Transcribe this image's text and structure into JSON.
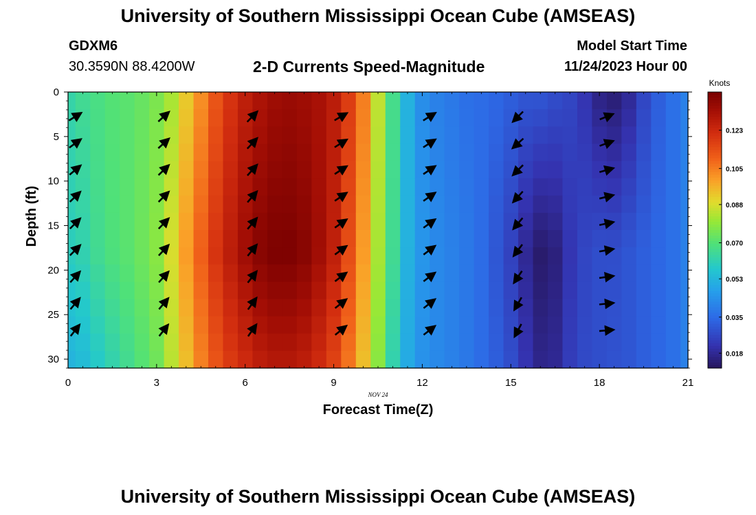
{
  "header": {
    "title": "University of Southern Mississippi Ocean Cube (AMSEAS)",
    "station": "GDXM6",
    "coordinates": "30.3590N  88.4200W",
    "subtitle": "2-D Currents Speed-Magnitude",
    "model_start_label": "Model Start Time",
    "model_start_value": "11/24/2023 Hour 00"
  },
  "footer": {
    "title": "University of Southern Mississippi Ocean Cube (AMSEAS)"
  },
  "chart_data": {
    "type": "heatmap",
    "title": "2-D Currents Speed-Magnitude",
    "xlabel": "Forecast Time(Z)",
    "ylabel": "Depth (ft)",
    "x_date_label": "NOV 24",
    "xlim": [
      0,
      21
    ],
    "ylim": [
      31,
      0
    ],
    "x_ticks": [
      0,
      3,
      6,
      9,
      12,
      15,
      18,
      21
    ],
    "y_ticks": [
      0,
      5,
      10,
      15,
      20,
      25,
      30
    ],
    "colorbar": {
      "label": "Knots",
      "ticks": [
        "0.123",
        "0.105",
        "0.088",
        "0.070",
        "0.053",
        "0.035",
        "0.018"
      ],
      "range": [
        0.011,
        0.141
      ]
    },
    "time_hours": [
      0,
      0.5,
      1,
      1.5,
      2,
      2.5,
      3,
      3.5,
      4,
      4.5,
      5,
      5.5,
      6,
      6.5,
      7,
      7.5,
      8,
      8.5,
      9,
      9.5,
      10,
      10.5,
      11,
      11.5,
      12,
      12.5,
      13,
      13.5,
      14,
      14.5,
      15,
      15.5,
      16,
      16.5,
      17,
      17.5,
      18,
      18.5,
      19,
      19.5,
      20,
      20.5,
      21
    ],
    "surface_speed_knots": [
      0.063,
      0.066,
      0.068,
      0.07,
      0.071,
      0.073,
      0.076,
      0.082,
      0.092,
      0.102,
      0.112,
      0.12,
      0.126,
      0.13,
      0.133,
      0.134,
      0.133,
      0.131,
      0.127,
      0.118,
      0.105,
      0.085,
      0.067,
      0.052,
      0.043,
      0.04,
      0.038,
      0.036,
      0.035,
      0.034,
      0.032,
      0.03,
      0.03,
      0.028,
      0.026,
      0.022,
      0.016,
      0.014,
      0.018,
      0.026,
      0.032,
      0.036,
      0.04
    ],
    "mid_speed_knots": [
      0.06,
      0.062,
      0.066,
      0.069,
      0.071,
      0.074,
      0.078,
      0.088,
      0.1,
      0.11,
      0.12,
      0.127,
      0.133,
      0.138,
      0.14,
      0.14,
      0.138,
      0.133,
      0.126,
      0.114,
      0.1,
      0.082,
      0.066,
      0.052,
      0.045,
      0.042,
      0.04,
      0.038,
      0.035,
      0.03,
      0.025,
      0.018,
      0.013,
      0.015,
      0.022,
      0.026,
      0.028,
      0.028,
      0.03,
      0.032,
      0.034,
      0.036,
      0.04
    ],
    "bottom_speed_knots": [
      0.052,
      0.054,
      0.058,
      0.062,
      0.066,
      0.07,
      0.074,
      0.084,
      0.094,
      0.104,
      0.112,
      0.118,
      0.122,
      0.126,
      0.128,
      0.128,
      0.126,
      0.122,
      0.116,
      0.106,
      0.094,
      0.078,
      0.062,
      0.05,
      0.044,
      0.042,
      0.04,
      0.038,
      0.035,
      0.032,
      0.028,
      0.022,
      0.017,
      0.018,
      0.024,
      0.027,
      0.028,
      0.029,
      0.03,
      0.032,
      0.034,
      0.036,
      0.04
    ],
    "vectors": {
      "times": [
        0,
        3,
        6,
        9,
        12,
        15,
        18
      ],
      "depths": [
        2,
        5,
        8,
        11,
        14,
        17,
        20,
        23,
        26
      ],
      "direction_deg": [
        [
          32,
          36,
          40,
          44,
          45,
          45,
          48,
          50,
          52
        ],
        [
          42,
          42,
          44,
          45,
          46,
          47,
          48,
          50,
          52
        ],
        [
          46,
          47,
          48,
          49,
          50,
          51,
          52,
          54,
          55
        ],
        [
          30,
          32,
          33,
          34,
          35,
          36,
          37,
          38,
          39
        ],
        [
          32,
          33,
          34,
          35,
          36,
          37,
          37,
          38,
          38
        ],
        [
          225,
          222,
          225,
          228,
          230,
          233,
          236,
          240,
          242
        ],
        [
          22,
          20,
          16,
          14,
          12,
          10,
          8,
          6,
          5
        ]
      ]
    }
  }
}
